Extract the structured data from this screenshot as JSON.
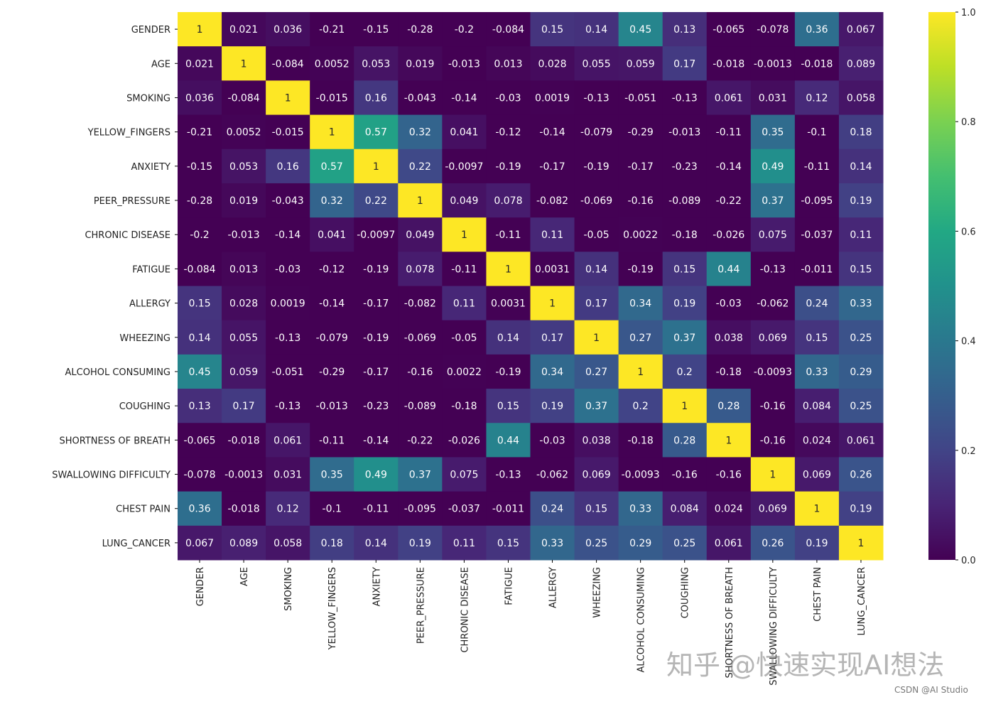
{
  "chart_data": {
    "type": "heatmap",
    "title": "",
    "colormap": "viridis",
    "vmin": 0.0,
    "vmax": 1.0,
    "colorbar_ticks": [
      "0.0",
      "0.2",
      "0.4",
      "0.6",
      "0.8",
      "1.0"
    ],
    "row_labels": [
      "GENDER",
      "AGE",
      "SMOKING",
      "YELLOW_FINGERS",
      "ANXIETY",
      "PEER_PRESSURE",
      "CHRONIC DISEASE",
      "FATIGUE",
      "ALLERGY",
      "WHEEZING",
      "ALCOHOL CONSUMING",
      "COUGHING",
      "SHORTNESS OF BREATH",
      "SWALLOWING DIFFICULTY",
      "CHEST PAIN",
      "LUNG_CANCER"
    ],
    "col_labels": [
      "GENDER",
      "AGE",
      "SMOKING",
      "YELLOW_FINGERS",
      "ANXIETY",
      "PEER_PRESSURE",
      "CHRONIC DISEASE",
      "FATIGUE",
      "ALLERGY",
      "WHEEZING",
      "ALCOHOL CONSUMING",
      "COUGHING",
      "SHORTNESS OF BREATH",
      "SWALLOWING DIFFICULTY",
      "CHEST PAIN",
      "LUNG_CANCER"
    ],
    "values": [
      [
        "1",
        "0.021",
        "0.036",
        "-0.21",
        "-0.15",
        "-0.28",
        "-0.2",
        "-0.084",
        "0.15",
        "0.14",
        "0.45",
        "0.13",
        "-0.065",
        "-0.078",
        "0.36",
        "0.067"
      ],
      [
        "0.021",
        "1",
        "-0.084",
        "0.0052",
        "0.053",
        "0.019",
        "-0.013",
        "0.013",
        "0.028",
        "0.055",
        "0.059",
        "0.17",
        "-0.018",
        "-0.0013",
        "-0.018",
        "0.089"
      ],
      [
        "0.036",
        "-0.084",
        "1",
        "-0.015",
        "0.16",
        "-0.043",
        "-0.14",
        "-0.03",
        "0.0019",
        "-0.13",
        "-0.051",
        "-0.13",
        "0.061",
        "0.031",
        "0.12",
        "0.058"
      ],
      [
        "-0.21",
        "0.0052",
        "-0.015",
        "1",
        "0.57",
        "0.32",
        "0.041",
        "-0.12",
        "-0.14",
        "-0.079",
        "-0.29",
        "-0.013",
        "-0.11",
        "0.35",
        "-0.1",
        "0.18"
      ],
      [
        "-0.15",
        "0.053",
        "0.16",
        "0.57",
        "1",
        "0.22",
        "-0.0097",
        "-0.19",
        "-0.17",
        "-0.19",
        "-0.17",
        "-0.23",
        "-0.14",
        "0.49",
        "-0.11",
        "0.14"
      ],
      [
        "-0.28",
        "0.019",
        "-0.043",
        "0.32",
        "0.22",
        "1",
        "0.049",
        "0.078",
        "-0.082",
        "-0.069",
        "-0.16",
        "-0.089",
        "-0.22",
        "0.37",
        "-0.095",
        "0.19"
      ],
      [
        "-0.2",
        "-0.013",
        "-0.14",
        "0.041",
        "-0.0097",
        "0.049",
        "1",
        "-0.11",
        "0.11",
        "-0.05",
        "0.0022",
        "-0.18",
        "-0.026",
        "0.075",
        "-0.037",
        "0.11"
      ],
      [
        "-0.084",
        "0.013",
        "-0.03",
        "-0.12",
        "-0.19",
        "0.078",
        "-0.11",
        "1",
        "0.0031",
        "0.14",
        "-0.19",
        "0.15",
        "0.44",
        "-0.13",
        "-0.011",
        "0.15"
      ],
      [
        "0.15",
        "0.028",
        "0.0019",
        "-0.14",
        "-0.17",
        "-0.082",
        "0.11",
        "0.0031",
        "1",
        "0.17",
        "0.34",
        "0.19",
        "-0.03",
        "-0.062",
        "0.24",
        "0.33"
      ],
      [
        "0.14",
        "0.055",
        "-0.13",
        "-0.079",
        "-0.19",
        "-0.069",
        "-0.05",
        "0.14",
        "0.17",
        "1",
        "0.27",
        "0.37",
        "0.038",
        "0.069",
        "0.15",
        "0.25"
      ],
      [
        "0.45",
        "0.059",
        "-0.051",
        "-0.29",
        "-0.17",
        "-0.16",
        "0.0022",
        "-0.19",
        "0.34",
        "0.27",
        "1",
        "0.2",
        "-0.18",
        "-0.0093",
        "0.33",
        "0.29"
      ],
      [
        "0.13",
        "0.17",
        "-0.13",
        "-0.013",
        "-0.23",
        "-0.089",
        "-0.18",
        "0.15",
        "0.19",
        "0.37",
        "0.2",
        "1",
        "0.28",
        "-0.16",
        "0.084",
        "0.25"
      ],
      [
        "-0.065",
        "-0.018",
        "0.061",
        "-0.11",
        "-0.14",
        "-0.22",
        "-0.026",
        "0.44",
        "-0.03",
        "0.038",
        "-0.18",
        "0.28",
        "1",
        "-0.16",
        "0.024",
        "0.061"
      ],
      [
        "-0.078",
        "-0.0013",
        "0.031",
        "0.35",
        "0.49",
        "0.37",
        "0.075",
        "-0.13",
        "-0.062",
        "0.069",
        "-0.0093",
        "-0.16",
        "-0.16",
        "1",
        "0.069",
        "0.26"
      ],
      [
        "0.36",
        "-0.018",
        "0.12",
        "-0.1",
        "-0.11",
        "-0.095",
        "-0.037",
        "-0.011",
        "0.24",
        "0.15",
        "0.33",
        "0.084",
        "0.024",
        "0.069",
        "1",
        "0.19"
      ],
      [
        "0.067",
        "0.089",
        "0.058",
        "0.18",
        "0.14",
        "0.19",
        "0.11",
        "0.15",
        "0.33",
        "0.25",
        "0.29",
        "0.25",
        "0.061",
        "0.26",
        "0.19",
        "1"
      ]
    ]
  },
  "watermark": {
    "main": "知乎 @快速实现AI想法",
    "corner": "CSDN @AI Studio"
  }
}
